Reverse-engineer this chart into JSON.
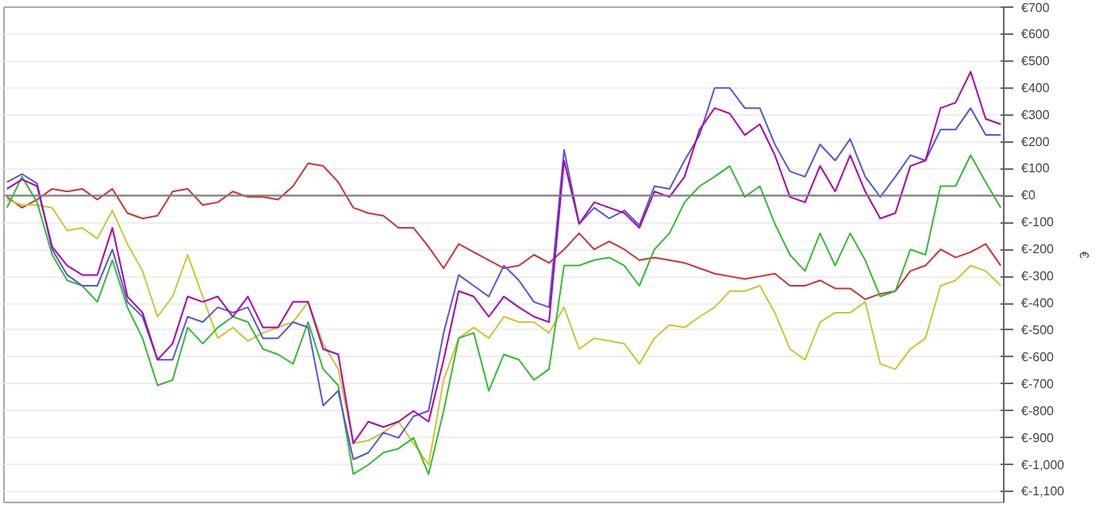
{
  "chart_data": {
    "type": "line",
    "ylabel": "€",
    "categories": [
      null,
      null,
      null,
      null,
      null,
      null,
      null,
      null,
      null,
      null,
      null,
      null,
      null,
      null,
      null,
      null,
      null,
      null,
      null,
      null,
      null,
      null,
      null,
      null,
      null,
      null,
      null,
      null,
      null,
      null,
      null,
      null,
      null,
      null,
      null,
      null,
      null,
      null,
      null,
      null,
      null,
      null,
      null,
      null,
      null,
      null,
      null,
      null,
      null,
      null,
      null,
      null,
      null,
      null,
      null,
      null,
      null,
      null,
      null,
      null,
      null,
      null,
      null,
      null,
      null,
      null,
      null
    ],
    "series": [
      {
        "color": "#cc3333",
        "values": [
          -5,
          -45,
          -15,
          25,
          15,
          25,
          -15,
          25,
          -65,
          -85,
          -75,
          15,
          25,
          -35,
          -25,
          15,
          -5,
          -5,
          -15,
          35,
          120,
          110,
          50,
          -45,
          -65,
          -75,
          -120,
          -120,
          -190,
          -270,
          -180,
          -210,
          -240,
          -270,
          -260,
          -220,
          -250,
          -200,
          -140,
          -200,
          -170,
          -200,
          -240,
          -230,
          -240,
          -250,
          -270,
          -290,
          -300,
          -310,
          -300,
          -290,
          -335,
          -335,
          -315,
          -345,
          -345,
          -385,
          -365,
          -355,
          -280,
          -260,
          -200,
          -230,
          -210,
          -180,
          -260
        ]
      },
      {
        "color": "#c8c832",
        "values": [
          -15,
          -35,
          -35,
          -45,
          -130,
          -120,
          -160,
          -55,
          -180,
          -280,
          -450,
          -375,
          -220,
          -375,
          -530,
          -490,
          -540,
          -510,
          -490,
          -470,
          -395,
          -550,
          -645,
          -920,
          -910,
          -880,
          -840,
          -920,
          -1000,
          -685,
          -530,
          -490,
          -530,
          -450,
          -470,
          -470,
          -510,
          -415,
          -570,
          -530,
          -540,
          -550,
          -625,
          -530,
          -480,
          -490,
          -450,
          -415,
          -355,
          -355,
          -335,
          -435,
          -570,
          -610,
          -470,
          -435,
          -435,
          -395,
          -625,
          -645,
          -570,
          -530,
          -335,
          -315,
          -260,
          -280,
          -335
        ]
      },
      {
        "color": "#33bb33",
        "values": [
          -45,
          70,
          -25,
          -220,
          -315,
          -335,
          -395,
          -240,
          -415,
          -530,
          -705,
          -685,
          -490,
          -550,
          -490,
          -450,
          -470,
          -570,
          -590,
          -625,
          -470,
          -645,
          -705,
          -1035,
          -1000,
          -955,
          -940,
          -900,
          -1035,
          -800,
          -530,
          -510,
          -725,
          -590,
          -610,
          -685,
          -645,
          -260,
          -260,
          -240,
          -230,
          -260,
          -335,
          -200,
          -140,
          -25,
          35,
          70,
          110,
          -5,
          35,
          -105,
          -220,
          -280,
          -140,
          -260,
          -140,
          -240,
          -375,
          -355,
          -200,
          -220,
          35,
          35,
          150,
          50,
          -45
        ]
      },
      {
        "color": "#5555dd",
        "values": [
          50,
          80,
          45,
          -200,
          -295,
          -335,
          -335,
          -200,
          -395,
          -450,
          -610,
          -610,
          -450,
          -470,
          -415,
          -435,
          -415,
          -530,
          -530,
          -470,
          -490,
          -780,
          -725,
          -980,
          -955,
          -880,
          -900,
          -820,
          -800,
          -510,
          -295,
          -335,
          -375,
          -260,
          -315,
          -395,
          -415,
          170,
          -105,
          -45,
          -85,
          -55,
          -110,
          35,
          25,
          130,
          225,
          400,
          400,
          325,
          325,
          190,
          90,
          70,
          190,
          130,
          210,
          70,
          -5,
          70,
          150,
          130,
          245,
          245,
          325,
          225,
          225
        ]
      },
      {
        "color": "#aa00aa",
        "values": [
          25,
          60,
          35,
          -190,
          -260,
          -295,
          -295,
          -120,
          -375,
          -435,
          -610,
          -550,
          -375,
          -395,
          -375,
          -450,
          -375,
          -490,
          -490,
          -395,
          -395,
          -570,
          -590,
          -920,
          -840,
          -860,
          -840,
          -800,
          -840,
          -610,
          -355,
          -375,
          -450,
          -375,
          -415,
          -450,
          -470,
          130,
          -105,
          -25,
          -45,
          -65,
          -120,
          15,
          -5,
          70,
          245,
          325,
          305,
          225,
          265,
          150,
          -5,
          -25,
          110,
          15,
          150,
          15,
          -85,
          -65,
          110,
          130,
          325,
          345,
          460,
          285,
          265
        ]
      }
    ],
    "ylim": [
      -1140,
      700
    ],
    "yticks": [
      {
        "value": 700,
        "label": "€700"
      },
      {
        "value": 600,
        "label": "€600"
      },
      {
        "value": 500,
        "label": "€500"
      },
      {
        "value": 400,
        "label": "€400"
      },
      {
        "value": 300,
        "label": "€300"
      },
      {
        "value": 200,
        "label": "€200"
      },
      {
        "value": 100,
        "label": "€100"
      },
      {
        "value": 0,
        "label": "€0"
      },
      {
        "value": -100,
        "label": "€-100"
      },
      {
        "value": -200,
        "label": "€-200"
      },
      {
        "value": -300,
        "label": "€-300"
      },
      {
        "value": -400,
        "label": "€-400"
      },
      {
        "value": -500,
        "label": "€-500"
      },
      {
        "value": -600,
        "label": "€-600"
      },
      {
        "value": -700,
        "label": "€-700"
      },
      {
        "value": -800,
        "label": "€-800"
      },
      {
        "value": -900,
        "label": "€-900"
      },
      {
        "value": -1000,
        "label": "€-1,000"
      },
      {
        "value": -1100,
        "label": "€-1,100"
      }
    ],
    "tick_labels": "y",
    "ref_lines": [
      {
        "axis": "y",
        "value": 0,
        "color": "#808080"
      }
    ],
    "grid": "y",
    "line_style": "solid",
    "marker": "none"
  }
}
